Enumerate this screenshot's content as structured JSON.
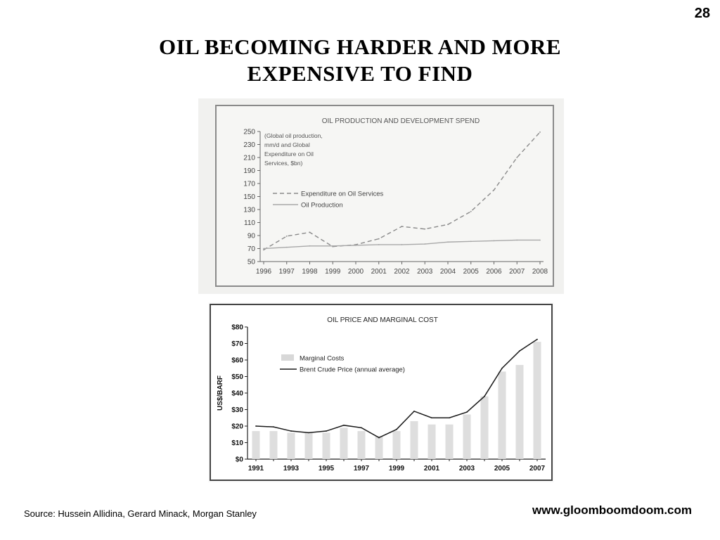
{
  "page_number": "28",
  "title": {
    "line1": "OIL  BECOMING  HARDER  AND  MORE",
    "line2": "EXPENSIVE  TO  FIND"
  },
  "source": "Source: Hussein Allidina, Gerard Minack, Morgan Stanley",
  "website": "www.gloomboomdoom.com",
  "chart_data": [
    {
      "type": "line",
      "title": "OIL PRODUCTION AND DEVELOPMENT SPEND",
      "note_lines": [
        "(Global oil production,",
        "mm/d and Global",
        "Expenditure on Oil",
        "Services, $bn)"
      ],
      "xlabel": "",
      "ylabel": "",
      "x": [
        "1996",
        "1997",
        "1998",
        "1999",
        "2000",
        "2001",
        "2002",
        "2003",
        "2004",
        "2005",
        "2006",
        "2007",
        "2008"
      ],
      "ylim": [
        50,
        250
      ],
      "yticks": [
        50,
        70,
        90,
        110,
        130,
        150,
        170,
        190,
        210,
        230,
        250
      ],
      "legend_position": "center-left",
      "series": [
        {
          "name": "Expenditure on Oil Services",
          "style": "dashed",
          "color": "#8a8a8a",
          "values": [
            68,
            89,
            95,
            73,
            76,
            85,
            104,
            100,
            107,
            127,
            160,
            210,
            249
          ]
        },
        {
          "name": "Oil Production",
          "style": "solid",
          "color": "#a8a8a8",
          "values": [
            70,
            72,
            74,
            74,
            75,
            76,
            76,
            77,
            80,
            81,
            82,
            83,
            83
          ]
        }
      ]
    },
    {
      "type": "bar",
      "title": "OIL PRICE AND MARGINAL COST",
      "ylabel": "US$/BARF",
      "xlabel": "",
      "x": [
        "1991",
        "1992",
        "1993",
        "1994",
        "1995",
        "1996",
        "1997",
        "1998",
        "1999",
        "2000",
        "2001",
        "2002",
        "2003",
        "2004",
        "2005",
        "2006",
        "2007"
      ],
      "x_tick_labels": [
        "1991",
        "1993",
        "1995",
        "1997",
        "1999",
        "2001",
        "2003",
        "2005",
        "2007"
      ],
      "ylim": [
        0,
        80
      ],
      "yticks": [
        "$0",
        "$10",
        "$20",
        "$30",
        "$40",
        "$50",
        "$60",
        "$70",
        "$80"
      ],
      "legend_position": "upper-left",
      "series": [
        {
          "name": "Marginal Costs",
          "type": "bar",
          "color": "#d8d8d8",
          "values": [
            17,
            17,
            16,
            16,
            16,
            19,
            17,
            14,
            17,
            23,
            21,
            21,
            27,
            38,
            53,
            57,
            71
          ]
        },
        {
          "name": "Brent Crude Price (annual average)",
          "type": "line",
          "color": "#1a1a1a",
          "values": [
            20,
            19.5,
            17,
            16,
            17,
            20.5,
            19,
            13,
            18,
            29,
            25,
            25,
            28.5,
            38,
            55,
            65.5,
            72.5
          ]
        }
      ]
    }
  ]
}
